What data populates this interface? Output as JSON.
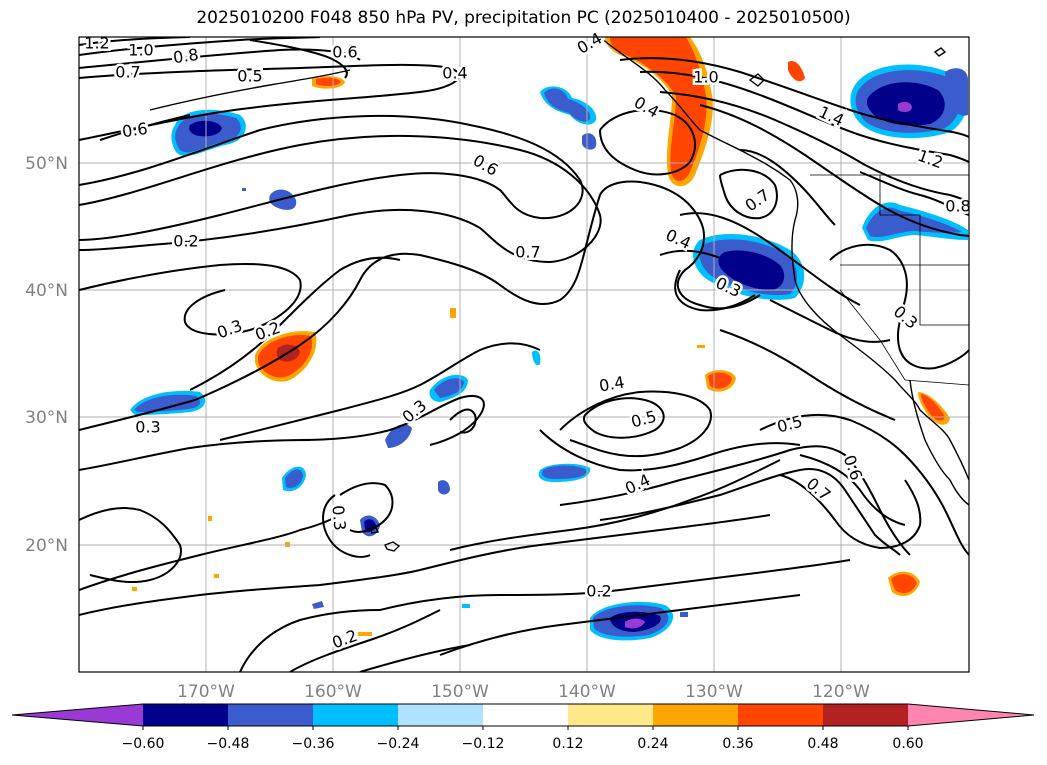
{
  "title": "2025010200 F048 850 hPa PV, precipitation PC (2025010400 - 2025010500)",
  "lat_labels": [
    "50°N",
    "40°N",
    "30°N",
    "20°N"
  ],
  "lon_labels": [
    "170°W",
    "160°W",
    "150°W",
    "140°W",
    "130°W",
    "120°W"
  ],
  "colorbar": {
    "ticks": [
      "−0.60",
      "−0.48",
      "−0.36",
      "−0.24",
      "−0.12",
      "0.12",
      "0.24",
      "0.36",
      "0.48",
      "0.60"
    ],
    "colors": [
      "#9a3ad4",
      "#00008b",
      "#3a5ccc",
      "#00bfff",
      "#b0e2ff",
      "#ffffff",
      "#ffe88a",
      "#ffa500",
      "#ff4500",
      "#b22222",
      "#ff85b0"
    ]
  },
  "contour_labels": [
    {
      "text": "1.2"
    },
    {
      "text": "1.0"
    },
    {
      "text": "0.8"
    },
    {
      "text": "0.7"
    },
    {
      "text": "0.5"
    },
    {
      "text": "0.6"
    },
    {
      "text": "0.6"
    },
    {
      "text": "0.6"
    },
    {
      "text": "0.2"
    },
    {
      "text": "0.7"
    },
    {
      "text": "0.3"
    },
    {
      "text": "0.2"
    },
    {
      "text": "0.3"
    },
    {
      "text": "0.3"
    },
    {
      "text": "0.4"
    },
    {
      "text": "0.4"
    },
    {
      "text": "0.3"
    },
    {
      "text": "0.4"
    },
    {
      "text": "0.5"
    },
    {
      "text": "0.4"
    },
    {
      "text": "0.5"
    },
    {
      "text": "0.6"
    },
    {
      "text": "0.7"
    },
    {
      "text": "0.2"
    },
    {
      "text": "0.2"
    },
    {
      "text": "0.3"
    },
    {
      "text": "0.4"
    },
    {
      "text": "1.0"
    },
    {
      "text": "1.4"
    },
    {
      "text": "1.2"
    },
    {
      "text": "0.8"
    },
    {
      "text": "0.7"
    },
    {
      "text": "0.3"
    },
    {
      "text": "0.4"
    }
  ]
}
